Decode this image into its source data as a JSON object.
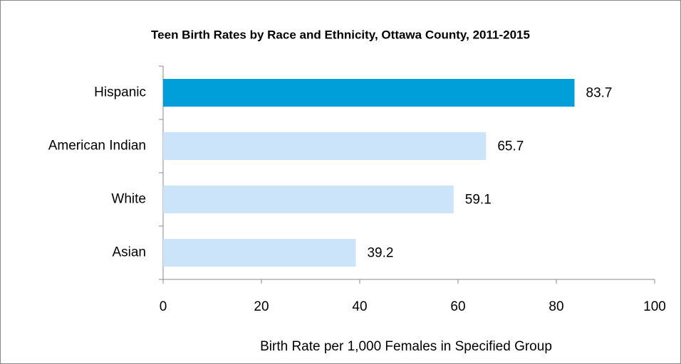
{
  "chart_data": {
    "type": "bar",
    "orientation": "horizontal",
    "title": "Teen Birth Rates by Race and Ethnicity, Ottawa County, 2011-2015",
    "x_label": "Birth Rate per 1,000 Females in Specified Group",
    "categories": [
      "Hispanic",
      "American Indian",
      "White",
      "Asian"
    ],
    "values": [
      83.7,
      65.7,
      59.1,
      39.2
    ],
    "colors": [
      "#009fda",
      "#cce4f9",
      "#cce4f9",
      "#cce4f9"
    ],
    "xlim": [
      0,
      100
    ],
    "xticks": [
      0,
      20,
      40,
      60,
      80,
      100
    ],
    "grid": false
  }
}
